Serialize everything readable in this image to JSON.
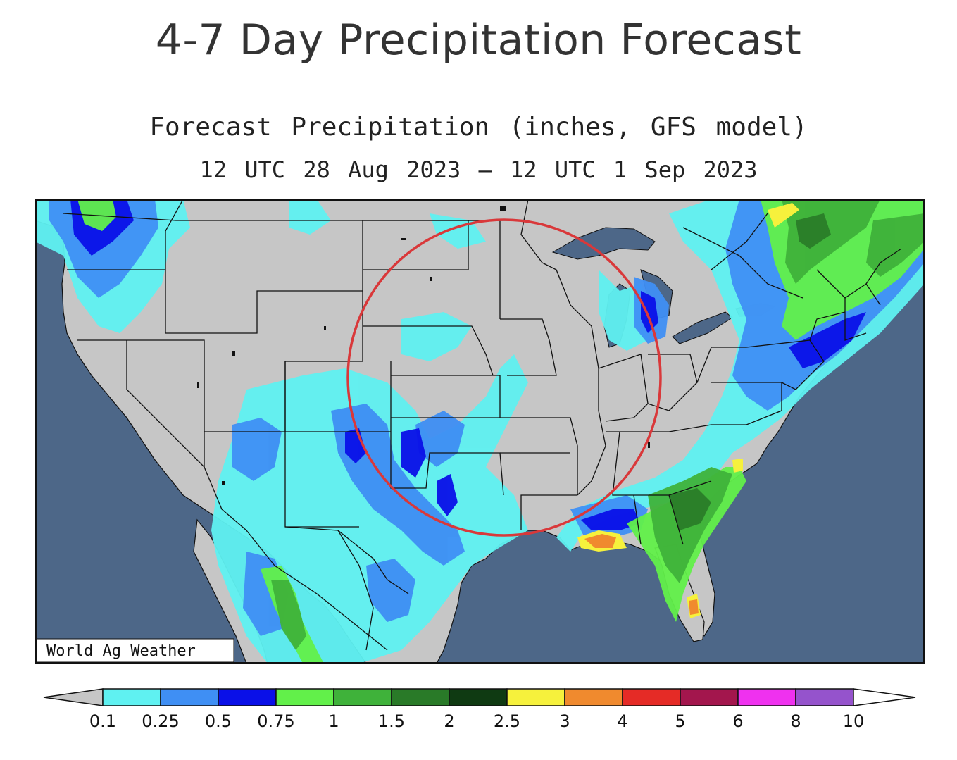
{
  "page": {
    "title": "4-7 Day Precipitation Forecast"
  },
  "map": {
    "title": "Forecast Precipitation (inches, GFS model)",
    "date_range": "12 UTC 28 Aug 2023 – 12 UTC 1 Sep 2023",
    "credit": "World Ag Weather",
    "highlight": "red-circle"
  },
  "legend": {
    "items": [
      {
        "label": "0.1",
        "color": "#5ff1f1"
      },
      {
        "label": "0.25",
        "color": "#3f8ff4"
      },
      {
        "label": "0.5",
        "color": "#0a10e8"
      },
      {
        "label": "0.75",
        "color": "#62f04a"
      },
      {
        "label": "1",
        "color": "#3fb23a"
      },
      {
        "label": "1.5",
        "color": "#297a28"
      },
      {
        "label": "2",
        "color": "#0f3a12"
      },
      {
        "label": "2.5",
        "color": "#f6f13c"
      },
      {
        "label": "3",
        "color": "#f08a2e"
      },
      {
        "label": "4",
        "color": "#e52b26"
      },
      {
        "label": "5",
        "color": "#a3164d"
      },
      {
        "label": "6",
        "color": "#ef31ef"
      },
      {
        "label": "8",
        "color": "#9553cc"
      },
      {
        "label": "10",
        "color": "#ffffff"
      }
    ],
    "below_color": "#c6c6c6"
  },
  "colors": {
    "land": "#c6c6c6",
    "ocean": "#4d6788",
    "highlight": "#d9383a"
  }
}
